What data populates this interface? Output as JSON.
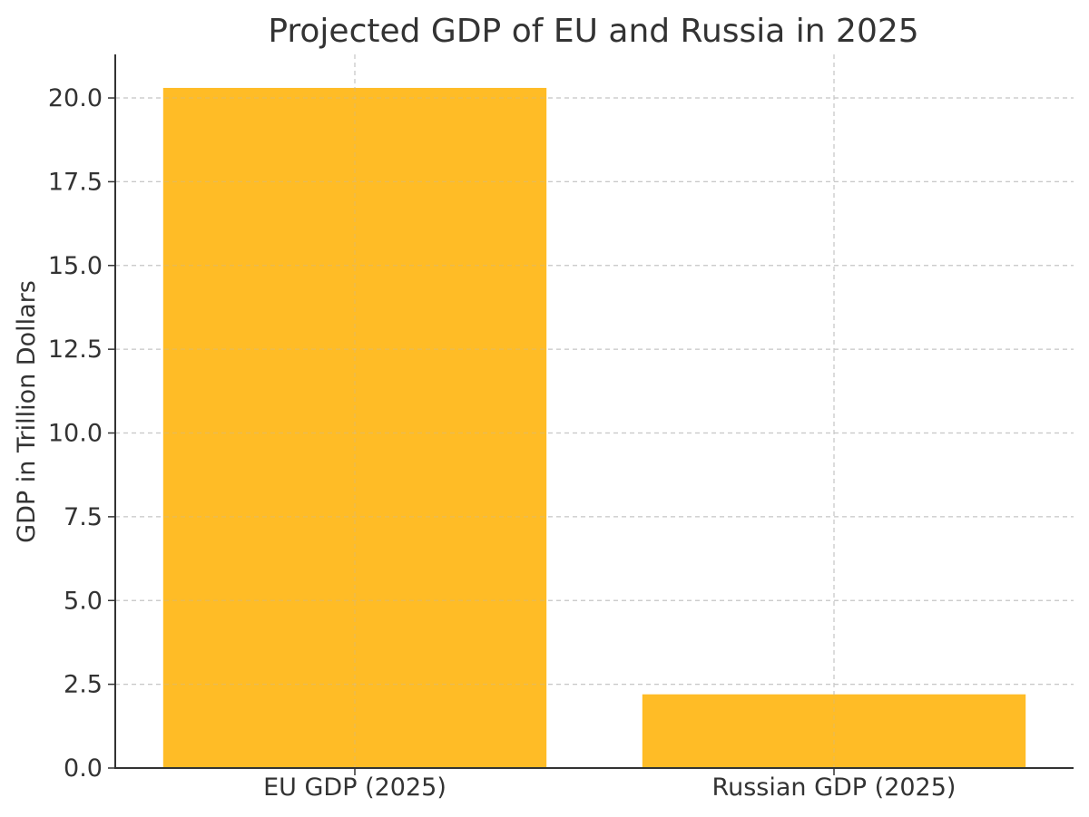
{
  "chart_data": {
    "type": "bar",
    "title": "Projected GDP of EU and Russia in 2025",
    "xlabel": "",
    "ylabel": "GDP in Trillion Dollars",
    "categories": [
      "EU GDP (2025)",
      "Russian GDP (2025)"
    ],
    "values": [
      20.3,
      2.2
    ],
    "ylim": [
      0,
      21.3
    ],
    "yticks": [
      0.0,
      2.5,
      5.0,
      7.5,
      10.0,
      12.5,
      15.0,
      17.5,
      20.0
    ],
    "ytick_labels": [
      "0.0",
      "2.5",
      "5.0",
      "7.5",
      "10.0",
      "12.5",
      "15.0",
      "17.5",
      "20.0"
    ],
    "bar_color": "#FFB000",
    "grid": true,
    "grid_style": "dashed",
    "grid_color": "#C8C8C8",
    "axis_color": "#333333",
    "legend": "none"
  }
}
